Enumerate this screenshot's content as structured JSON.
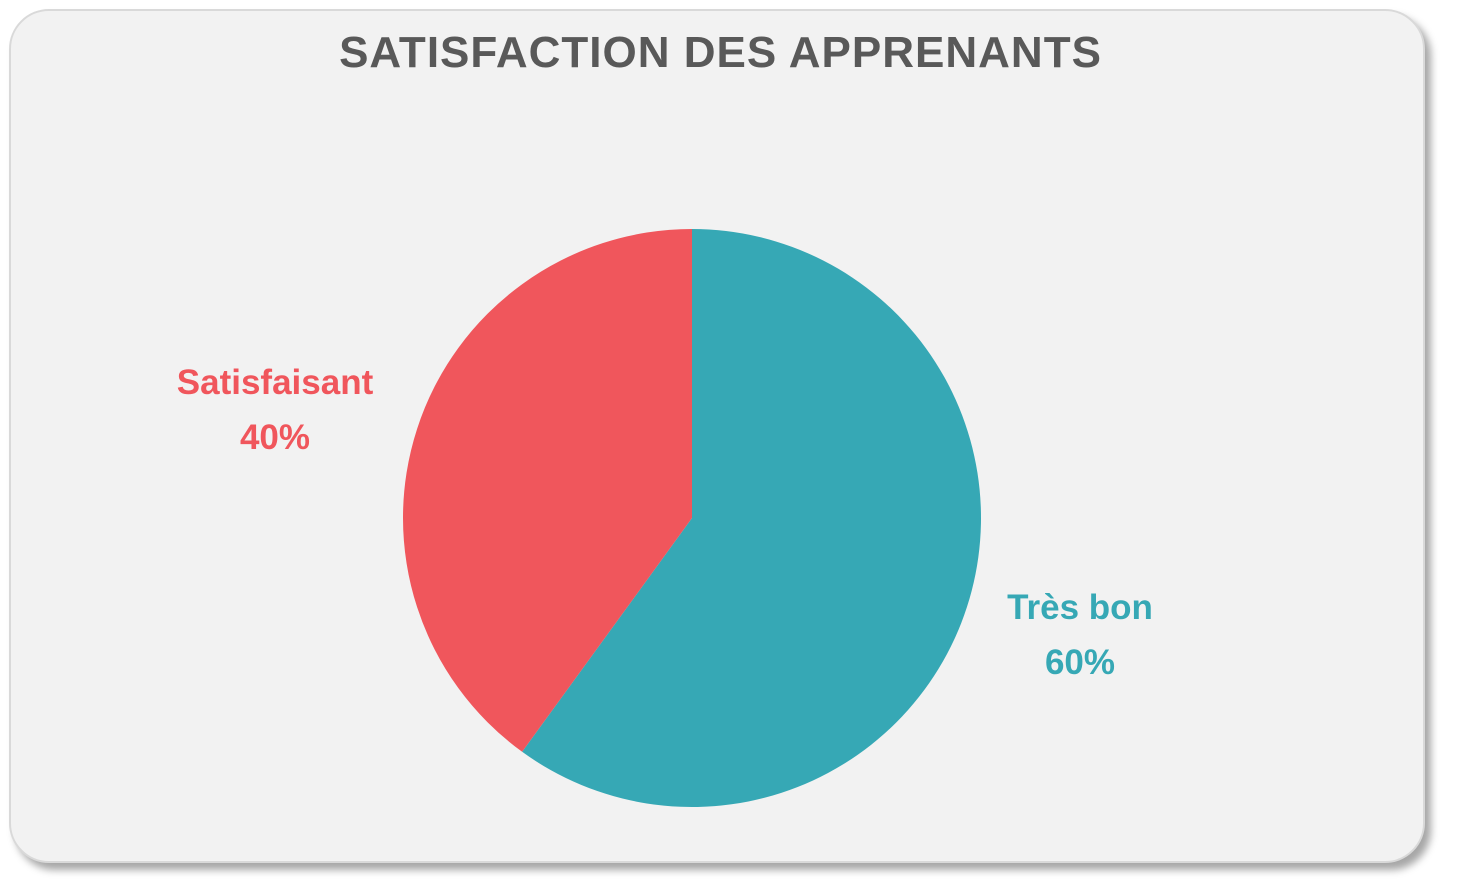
{
  "chart_data": {
    "type": "pie",
    "title": "SATISFACTION DES APPRENANTS",
    "categories": [
      "Très bon",
      "Satisfaisant"
    ],
    "values": [
      60,
      40
    ],
    "labels": [
      {
        "name": "Très bon",
        "value": "60%"
      },
      {
        "name": "Satisfaisant",
        "value": "40%"
      }
    ],
    "colors": [
      "#36a8b5",
      "#f0565c"
    ],
    "start_angle": "12 o'clock, clockwise",
    "legend": "none"
  }
}
